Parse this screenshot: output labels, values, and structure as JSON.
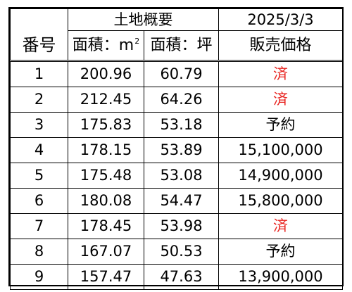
{
  "header": {
    "group_label": "土地概要",
    "date": "2025/3/3",
    "col_number": "番号",
    "col_area_m2": "面積：m",
    "col_area_m2_sup": "2",
    "col_area_tsubo": "面積：坪",
    "col_price": "販売価格"
  },
  "rows": [
    {
      "no": "1",
      "m2": "200.96",
      "tsubo": "60.79",
      "price": "済",
      "status": "sold"
    },
    {
      "no": "2",
      "m2": "212.45",
      "tsubo": "64.26",
      "price": "済",
      "status": "sold"
    },
    {
      "no": "3",
      "m2": "175.83",
      "tsubo": "53.18",
      "price": "予約",
      "status": "reserved"
    },
    {
      "no": "4",
      "m2": "178.15",
      "tsubo": "53.89",
      "price": "15,100,000",
      "status": "available"
    },
    {
      "no": "5",
      "m2": "175.48",
      "tsubo": "53.08",
      "price": "14,900,000",
      "status": "available"
    },
    {
      "no": "6",
      "m2": "180.08",
      "tsubo": "54.47",
      "price": "15,800,000",
      "status": "available"
    },
    {
      "no": "7",
      "m2": "178.45",
      "tsubo": "53.98",
      "price": "済",
      "status": "sold"
    },
    {
      "no": "8",
      "m2": "167.07",
      "tsubo": "50.53",
      "price": "予約",
      "status": "reserved"
    },
    {
      "no": "9",
      "m2": "157.47",
      "tsubo": "47.63",
      "price": "13,900,000",
      "status": "available"
    }
  ],
  "colors": {
    "sold_text": "#e8231f",
    "text": "#000000",
    "border": "#000000",
    "background": "#ffffff"
  }
}
